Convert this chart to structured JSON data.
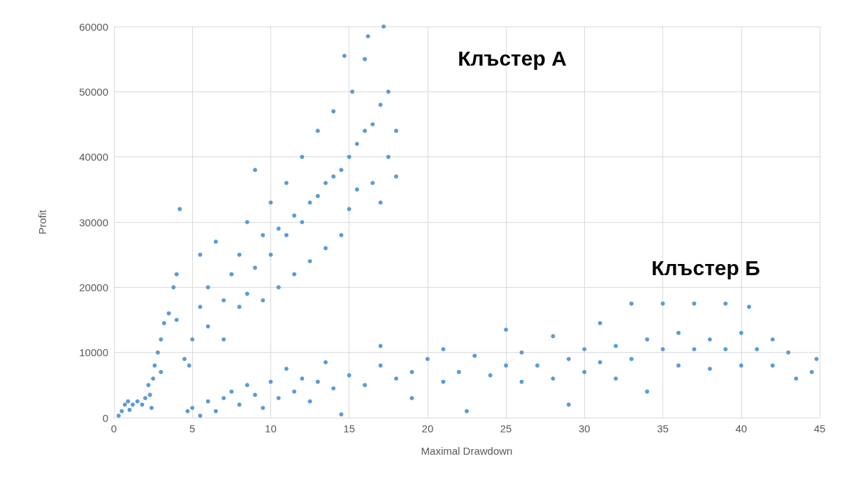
{
  "chart_data": {
    "type": "scatter",
    "xlabel": "Maximal Drawdown",
    "ylabel": "Profit",
    "annotations": [
      "Клъстер А",
      "Клъстер Б"
    ],
    "xlim": [
      0,
      45
    ],
    "xticks": [
      0,
      5,
      10,
      15,
      20,
      25,
      30,
      35,
      40,
      45
    ],
    "ylim": [
      0,
      60000
    ],
    "yticks": [
      0,
      10000,
      20000,
      30000,
      40000,
      50000,
      60000
    ],
    "grid": true,
    "marker": "circle",
    "series": [
      {
        "color": "#5b9bd5",
        "x": [
          0.3,
          0.5,
          0.7,
          0.9,
          1.2,
          1.5,
          2,
          2.3,
          2.4,
          1,
          1.8,
          2.2,
          2.5,
          2.6,
          2.8,
          3,
          3.2,
          3.5,
          3.8,
          4,
          4.2,
          4,
          3,
          4.5,
          4.8,
          5,
          5.5,
          5.5,
          6,
          6.5,
          6,
          7,
          7,
          7.5,
          8,
          8,
          8.5,
          8.5,
          9,
          9,
          9.5,
          9.5,
          10,
          10,
          10.5,
          10.5,
          11,
          11,
          11.5,
          11.5,
          12,
          12,
          12.5,
          12.5,
          13,
          13,
          13.5,
          13.5,
          14,
          14,
          14.5,
          14.5,
          15,
          15,
          15.2,
          15.5,
          15.5,
          16,
          16,
          16.5,
          16.5,
          17,
          17,
          17.2,
          17.5,
          17.5,
          18,
          18,
          14.7,
          16.2,
          4.7,
          5,
          5.5,
          6,
          6.5,
          7,
          7.5,
          8,
          8.5,
          9,
          9.5,
          10,
          10.5,
          11,
          11.5,
          12,
          12.5,
          13,
          13.5,
          14,
          14.5,
          15,
          16,
          17,
          17,
          18,
          19,
          19,
          20,
          21,
          21,
          22,
          22.5,
          23,
          24,
          25,
          25,
          26,
          26,
          27,
          28,
          28,
          29,
          29,
          30,
          30,
          31,
          31,
          32,
          32,
          33,
          33,
          34,
          34,
          35,
          35,
          36,
          36,
          37,
          37,
          38,
          38,
          39,
          39,
          40,
          40,
          40.5,
          41,
          42,
          42,
          43,
          43.5,
          44.8,
          44.5
        ],
        "values": [
          300,
          1000,
          2000,
          2500,
          2000,
          2500,
          3000,
          3500,
          1500,
          1200,
          2000,
          5000,
          6000,
          8000,
          10000,
          12000,
          14500,
          16000,
          20000,
          22000,
          32000,
          15000,
          7000,
          9000,
          8000,
          12000,
          25000,
          17000,
          20000,
          27000,
          14000,
          18000,
          12000,
          22000,
          25000,
          17000,
          30000,
          19000,
          23000,
          38000,
          28000,
          18000,
          25000,
          33000,
          29000,
          20000,
          28000,
          36000,
          31000,
          22000,
          30000,
          40000,
          33000,
          24000,
          34000,
          44000,
          36000,
          26000,
          37000,
          47000,
          38000,
          28000,
          40000,
          32000,
          50000,
          42000,
          35000,
          44000,
          55000,
          45000,
          36000,
          48000,
          33000,
          60000,
          50000,
          40000,
          44000,
          37000,
          55500,
          58500,
          1000,
          1500,
          300,
          2500,
          1000,
          3000,
          4000,
          2000,
          5000,
          3500,
          1500,
          5500,
          3000,
          7500,
          4000,
          6000,
          2500,
          5500,
          8500,
          4500,
          500,
          6500,
          5000,
          8000,
          11000,
          6000,
          7000,
          3000,
          9000,
          5500,
          10500,
          7000,
          1000,
          9500,
          6500,
          8000,
          13500,
          5500,
          10000,
          8000,
          12500,
          6000,
          9000,
          2000,
          10500,
          7000,
          14500,
          8500,
          11000,
          6000,
          17500,
          9000,
          12000,
          4000,
          10500,
          17500,
          13000,
          8000,
          10500,
          17500,
          12000,
          7500,
          17500,
          10500,
          13000,
          8000,
          17000,
          10500,
          12000,
          8000,
          10000,
          6000,
          9000,
          7000
        ]
      }
    ]
  }
}
